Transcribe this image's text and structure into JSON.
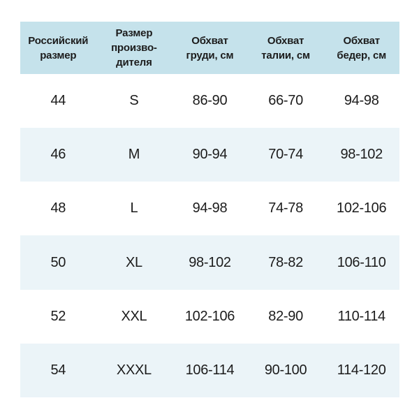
{
  "colors": {
    "header_bg": "#c5e2eb",
    "row_alt_bg": "#ebf4f8",
    "row_bg": "#ffffff",
    "text": "#1c1c1c"
  },
  "chart_data": {
    "type": "table",
    "title": "",
    "columns": [
      [
        "Российский",
        "размер"
      ],
      [
        "Размер",
        "произво-",
        "дителя"
      ],
      [
        "Обхват",
        "груди, см"
      ],
      [
        "Обхват",
        "талии, см"
      ],
      [
        "Обхват",
        "бедер, см"
      ]
    ],
    "rows": [
      [
        "44",
        "S",
        "86-90",
        "66-70",
        "94-98"
      ],
      [
        "46",
        "M",
        "90-94",
        "70-74",
        "98-102"
      ],
      [
        "48",
        "L",
        "94-98",
        "74-78",
        "102-106"
      ],
      [
        "50",
        "XL",
        "98-102",
        "78-82",
        "106-110"
      ],
      [
        "52",
        "XXL",
        "102-106",
        "82-90",
        "110-114"
      ],
      [
        "54",
        "XXXL",
        "106-114",
        "90-100",
        "114-120"
      ]
    ]
  }
}
